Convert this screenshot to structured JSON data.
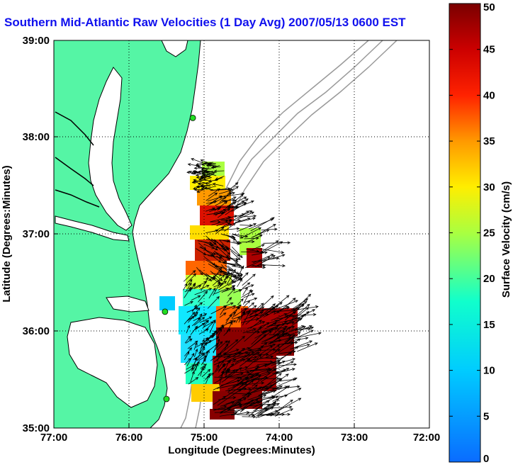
{
  "title": "Southern Mid-Atlantic Raw Velocities (1 Day Avg) 2007/05/13 0600 EST",
  "map": {
    "xlabel": "Longitude (Degrees:Minutes)",
    "ylabel": "Latitude (Degrees:Minutes)",
    "lon_ticks": [
      "77:00",
      "76:00",
      "75:00",
      "74:00",
      "73:00",
      "72:00"
    ],
    "lat_ticks": [
      "35:00",
      "36:00",
      "37:00",
      "38:00",
      "39:00"
    ],
    "lon_range_deg_west": [
      77,
      72
    ],
    "lat_range_deg_north": [
      35,
      39
    ],
    "grid": "dotted",
    "land_color": "#55f5a5",
    "water_color": "#ffffff",
    "coastline_color": "#000000",
    "bathymetry_color": "#9a9a9a",
    "station_color": "#22dd22"
  },
  "colorbar": {
    "label": "Surface Velocity (cm/s)",
    "ticks": [
      "0",
      "5",
      "10",
      "15",
      "20",
      "25",
      "30",
      "35",
      "40",
      "45",
      "50"
    ],
    "range": [
      0,
      50
    ],
    "unit": "cm/s"
  },
  "stations": [
    {
      "lon": 75.15,
      "lat": 38.2
    },
    {
      "lon": 75.52,
      "lat": 36.2
    },
    {
      "lon": 75.5,
      "lat": 35.3
    }
  ]
}
